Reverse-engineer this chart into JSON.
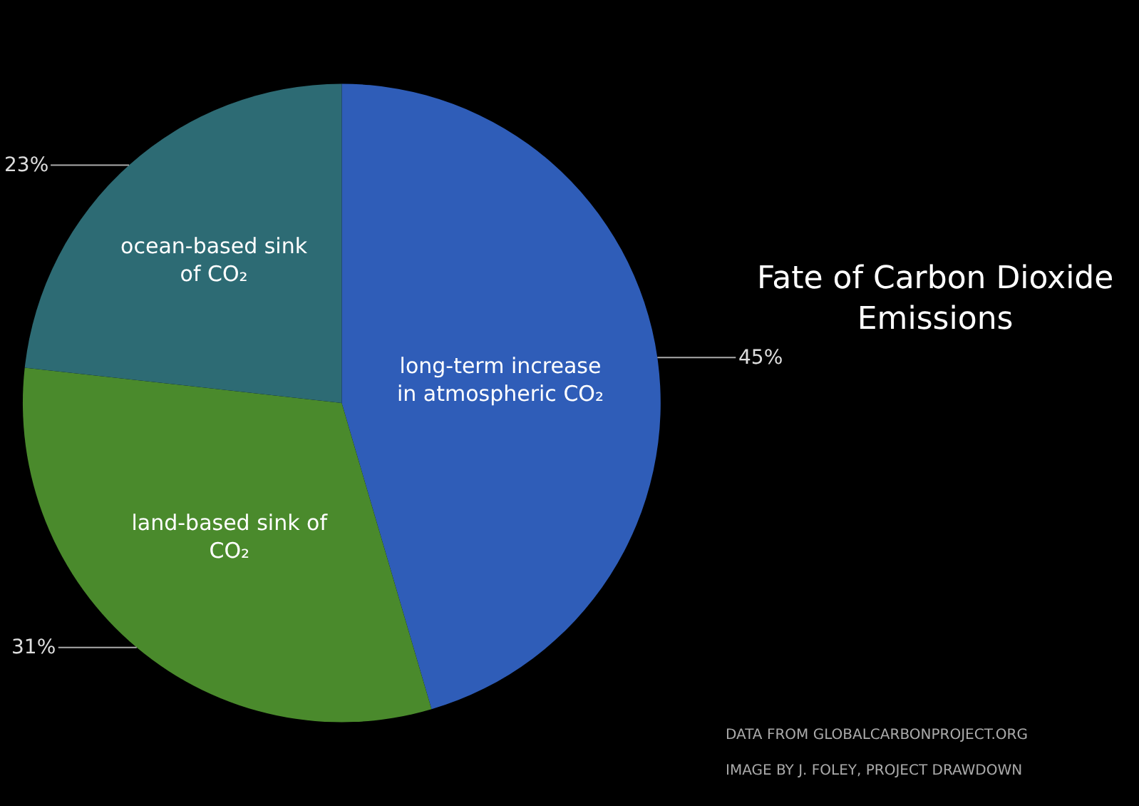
{
  "chart_data": {
    "type": "pie",
    "title": "Fate of Carbon Dioxide Emissions",
    "categories": [
      "long-term increase in atmospheric CO₂",
      "land-based sink of CO₂",
      "ocean-based sink of CO₂"
    ],
    "values": [
      45,
      31,
      23
    ],
    "value_labels": [
      "45%",
      "31%",
      "23%"
    ],
    "colors": [
      "#2f5db8",
      "#4a8a2c",
      "#2d6b74"
    ],
    "annotations": [
      "DATA FROM GLOBALCARBONPROJECT.ORG",
      "IMAGE BY J. FOLEY, PROJECT DRAWDOWN"
    ],
    "legend": false
  }
}
